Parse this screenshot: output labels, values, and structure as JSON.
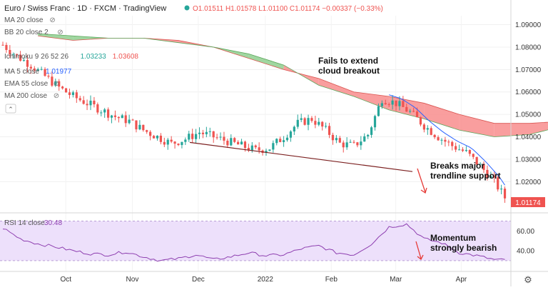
{
  "header": {
    "symbol": "Euro / Swiss Franc · 1D · FXCM · TradingView",
    "ohlc": "O1.01511 H1.01578 L1.01100 C1.01174 −0.00337 (−0.33%)"
  },
  "legend": [
    {
      "label": "MA 20 close",
      "hidden": true
    },
    {
      "label": "BB 20 close 2",
      "hidden": true
    },
    {
      "label": "Ichimoku 9 26 52 26",
      "values": [
        "1.03233",
        "1.03608"
      ],
      "value_colors": [
        "#26a69a",
        "#ef5350"
      ]
    },
    {
      "label": "MA 5 close",
      "values": [
        "1.01977"
      ],
      "value_colors": [
        "#2962ff"
      ]
    },
    {
      "label": "EMA 55 close",
      "hidden": true
    },
    {
      "label": "MA 200 close",
      "hidden": true
    }
  ],
  "rsi_label": {
    "label": "RSI 14 close",
    "value": "30.48"
  },
  "annotations": {
    "cloud": [
      "Fails to extend",
      "cloud breakout"
    ],
    "trend": [
      "Breaks major",
      "trendline support"
    ],
    "momentum": [
      "Momentum",
      "strongly bearish"
    ]
  },
  "last_price": "1.01174",
  "colors": {
    "up": "#26a69a",
    "down": "#ef5350",
    "cloud_bear": "#f88d8d",
    "cloud_bull": "#8fcf8f",
    "ma5": "#2962ff",
    "rsi": "#8e3fb0",
    "trendline": "#7b1f1f",
    "arrow": "#e53935"
  },
  "chart_data": {
    "type": "candlestick",
    "x_ticks": [
      "Oct",
      "Nov",
      "Dec",
      "2022",
      "Feb",
      "Mar",
      "Apr"
    ],
    "y_ticks": [
      "1.09000",
      "1.08000",
      "1.07000",
      "1.06000",
      "1.05000",
      "1.04000",
      "1.03000",
      "1.02000"
    ],
    "ylim": [
      1.008,
      1.094
    ],
    "rsi_ticks": [
      "60.00",
      "40.00"
    ],
    "rsi_ylim": [
      22,
      74
    ],
    "trendline": [
      [
        1.0375,
        0
      ],
      [
        1.0245,
        1
      ]
    ],
    "close_path": [
      [
        0,
        1.081
      ],
      [
        8,
        1.076
      ],
      [
        16,
        1.072
      ],
      [
        24,
        1.067
      ],
      [
        32,
        1.062
      ],
      [
        40,
        1.058
      ],
      [
        48,
        1.055
      ],
      [
        56,
        1.052
      ],
      [
        64,
        1.049
      ],
      [
        72,
        1.047
      ],
      [
        80,
        1.043
      ],
      [
        88,
        1.04
      ],
      [
        96,
        1.037
      ],
      [
        104,
        1.039
      ],
      [
        112,
        1.042
      ],
      [
        120,
        1.04
      ],
      [
        128,
        1.038
      ],
      [
        136,
        1.036
      ],
      [
        144,
        1.034
      ],
      [
        152,
        1.035
      ],
      [
        160,
        1.04
      ],
      [
        168,
        1.046
      ],
      [
        176,
        1.048
      ],
      [
        184,
        1.043
      ],
      [
        192,
        1.037
      ],
      [
        200,
        1.036
      ],
      [
        208,
        1.041
      ],
      [
        216,
        1.057
      ],
      [
        224,
        1.055
      ],
      [
        232,
        1.051
      ],
      [
        240,
        1.045
      ],
      [
        248,
        1.04
      ],
      [
        256,
        1.036
      ],
      [
        264,
        1.033
      ],
      [
        272,
        1.027
      ],
      [
        280,
        1.02
      ],
      [
        287,
        1.0117
      ]
    ],
    "cloud_upper": [
      [
        20,
        1.085
      ],
      [
        40,
        1.083
      ],
      [
        60,
        1.084
      ],
      [
        80,
        1.084
      ],
      [
        100,
        1.083
      ],
      [
        120,
        1.08
      ],
      [
        140,
        1.075
      ],
      [
        160,
        1.07
      ],
      [
        180,
        1.066
      ],
      [
        200,
        1.06
      ],
      [
        220,
        1.058
      ],
      [
        240,
        1.055
      ],
      [
        260,
        1.05
      ],
      [
        280,
        1.046
      ],
      [
        300,
        1.046
      ],
      [
        320,
        1.047
      ],
      [
        340,
        1.046
      ],
      [
        360,
        1.043
      ],
      [
        375,
        1.034
      ]
    ],
    "cloud_lower": [
      [
        20,
        1.086
      ],
      [
        40,
        1.085
      ],
      [
        60,
        1.084
      ],
      [
        80,
        1.084
      ],
      [
        100,
        1.082
      ],
      [
        120,
        1.08
      ],
      [
        140,
        1.077
      ],
      [
        160,
        1.072
      ],
      [
        180,
        1.063
      ],
      [
        200,
        1.058
      ],
      [
        220,
        1.052
      ],
      [
        240,
        1.048
      ],
      [
        260,
        1.043
      ],
      [
        280,
        1.04
      ],
      [
        300,
        1.041
      ],
      [
        320,
        1.045
      ],
      [
        340,
        1.045
      ],
      [
        360,
        1.042
      ],
      [
        375,
        1.033
      ]
    ],
    "rsi_path": [
      [
        0,
        63
      ],
      [
        10,
        52
      ],
      [
        20,
        47
      ],
      [
        30,
        44
      ],
      [
        40,
        40
      ],
      [
        50,
        37
      ],
      [
        60,
        36
      ],
      [
        70,
        39
      ],
      [
        80,
        34
      ],
      [
        90,
        30
      ],
      [
        100,
        32
      ],
      [
        110,
        36
      ],
      [
        120,
        31
      ],
      [
        130,
        34
      ],
      [
        140,
        38
      ],
      [
        150,
        35
      ],
      [
        160,
        36
      ],
      [
        170,
        42
      ],
      [
        180,
        45
      ],
      [
        190,
        38
      ],
      [
        200,
        36
      ],
      [
        210,
        47
      ],
      [
        220,
        64
      ],
      [
        230,
        67
      ],
      [
        240,
        52
      ],
      [
        250,
        48
      ],
      [
        260,
        38
      ],
      [
        270,
        35
      ],
      [
        280,
        31
      ],
      [
        287,
        30.5
      ]
    ],
    "x_count": 288
  }
}
